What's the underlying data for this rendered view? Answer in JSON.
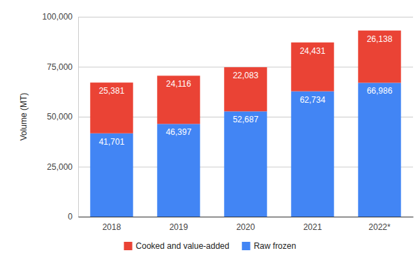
{
  "chart_data": {
    "type": "bar",
    "stacked": true,
    "data_labels": true,
    "grid": true,
    "legend": "bottom",
    "y_label": "Volume (MT)",
    "categories": [
      "2018",
      "2019",
      "2020",
      "2021",
      "2022*"
    ],
    "series": [
      {
        "name": "Raw frozen",
        "color": "#4285f4",
        "values": [
          41701,
          46397,
          52687,
          62734,
          66986
        ],
        "value_labels": [
          "41,701",
          "46,397",
          "52,687",
          "62,734",
          "66,986"
        ]
      },
      {
        "name": "Cooked and value-added",
        "color": "#ea4335",
        "values": [
          25381,
          24116,
          22083,
          24431,
          26138
        ],
        "value_labels": [
          "25,381",
          "24,116",
          "22,083",
          "24,431",
          "26,138"
        ]
      }
    ],
    "ylim": [
      0,
      100000
    ],
    "yticks": [
      0,
      {
        "value": 25000,
        "label": "25,000"
      },
      {
        "value": 50000,
        "label": "50,000"
      },
      {
        "value": 75000,
        "label": "75,000"
      },
      {
        "value": 100000,
        "label": "100,000"
      }
    ]
  }
}
